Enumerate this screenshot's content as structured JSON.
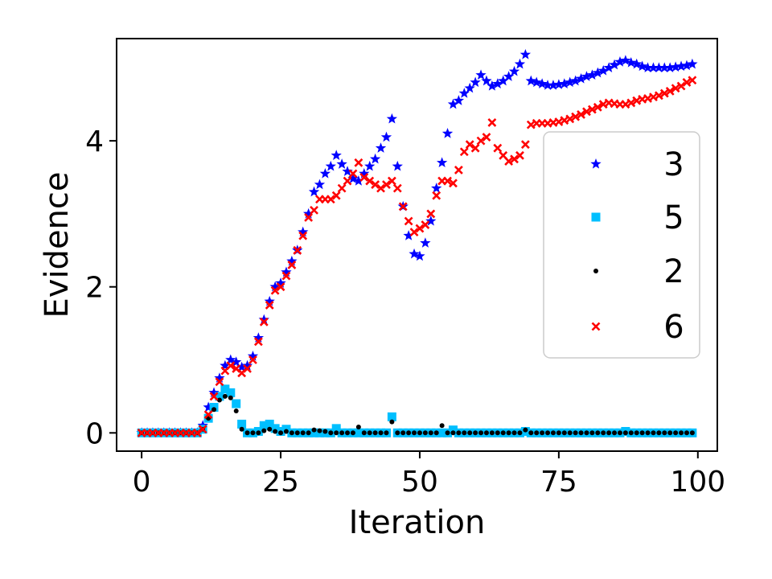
{
  "chart_data": {
    "type": "scatter",
    "title": "",
    "xlabel": "Iteration",
    "ylabel": "Evidence",
    "xlim": [
      -4.5,
      103.5
    ],
    "ylim": [
      -0.25,
      5.4
    ],
    "xticks": [
      0,
      25,
      50,
      75,
      100
    ],
    "yticks": [
      0,
      2,
      4
    ],
    "grid": false,
    "legend_position": "right",
    "series": [
      {
        "name": "3",
        "color": "#0000ff",
        "marker": "star",
        "x": [
          0,
          1,
          2,
          3,
          4,
          5,
          6,
          7,
          8,
          9,
          10,
          11,
          12,
          13,
          14,
          15,
          16,
          17,
          18,
          19,
          20,
          21,
          22,
          23,
          24,
          25,
          26,
          27,
          28,
          29,
          30,
          31,
          32,
          33,
          34,
          35,
          36,
          37,
          38,
          39,
          40,
          41,
          42,
          43,
          44,
          45,
          46,
          47,
          48,
          49,
          50,
          51,
          52,
          53,
          54,
          55,
          56,
          57,
          58,
          59,
          60,
          61,
          62,
          63,
          64,
          65,
          66,
          67,
          68,
          69,
          70,
          71,
          72,
          73,
          74,
          75,
          76,
          77,
          78,
          79,
          80,
          81,
          82,
          83,
          84,
          85,
          86,
          87,
          88,
          89,
          90,
          91,
          92,
          93,
          94,
          95,
          96,
          97,
          98,
          99
        ],
        "y": [
          0,
          0,
          0,
          0,
          0,
          0,
          0,
          0,
          0,
          0,
          0,
          0.1,
          0.35,
          0.55,
          0.75,
          0.92,
          1.0,
          0.97,
          0.9,
          0.92,
          1.05,
          1.3,
          1.55,
          1.8,
          2.0,
          2.05,
          2.2,
          2.35,
          2.5,
          2.75,
          3.0,
          3.3,
          3.4,
          3.55,
          3.65,
          3.8,
          3.68,
          3.58,
          3.48,
          3.45,
          3.55,
          3.65,
          3.75,
          3.9,
          4.05,
          4.3,
          3.65,
          3.1,
          2.7,
          2.45,
          2.42,
          2.6,
          2.9,
          3.35,
          3.7,
          4.1,
          4.5,
          4.55,
          4.65,
          4.72,
          4.8,
          4.9,
          4.82,
          4.75,
          4.78,
          4.82,
          4.88,
          4.95,
          5.05,
          5.18,
          4.82,
          4.8,
          4.78,
          4.76,
          4.76,
          4.77,
          4.78,
          4.8,
          4.82,
          4.85,
          4.88,
          4.9,
          4.93,
          4.96,
          5.0,
          5.04,
          5.08,
          5.1,
          5.07,
          5.05,
          5.02,
          5.0,
          5.0,
          5.0,
          5.0,
          5.0,
          5.01,
          5.02,
          5.03,
          5.05
        ]
      },
      {
        "name": "5",
        "color": "#00bfff",
        "marker": "square",
        "x": [
          0,
          1,
          2,
          3,
          4,
          5,
          6,
          7,
          8,
          9,
          10,
          11,
          12,
          13,
          14,
          15,
          16,
          17,
          18,
          19,
          20,
          21,
          22,
          23,
          24,
          25,
          26,
          27,
          28,
          29,
          30,
          31,
          32,
          33,
          34,
          35,
          36,
          37,
          38,
          39,
          40,
          41,
          42,
          43,
          44,
          45,
          46,
          47,
          48,
          49,
          50,
          51,
          52,
          53,
          54,
          55,
          56,
          57,
          58,
          59,
          60,
          61,
          62,
          63,
          64,
          65,
          66,
          67,
          68,
          69,
          70,
          71,
          72,
          73,
          74,
          75,
          76,
          77,
          78,
          79,
          80,
          81,
          82,
          83,
          84,
          85,
          86,
          87,
          88,
          89,
          90,
          91,
          92,
          93,
          94,
          95,
          96,
          97,
          98,
          99
        ],
        "y": [
          0,
          0,
          0,
          0,
          0,
          0,
          0,
          0,
          0,
          0,
          0,
          0.05,
          0.2,
          0.35,
          0.5,
          0.6,
          0.55,
          0.4,
          0.12,
          0,
          0,
          0.02,
          0.1,
          0.12,
          0.06,
          0.02,
          0.05,
          0,
          0,
          0,
          0,
          0,
          0,
          0,
          0,
          0.06,
          0,
          0,
          0,
          0,
          0,
          0,
          0,
          0,
          0,
          0.22,
          0,
          0,
          0,
          0,
          0,
          0,
          0,
          0,
          0,
          0,
          0.04,
          0,
          0,
          0,
          0,
          0,
          0,
          0,
          0,
          0,
          0,
          0,
          0,
          0.02,
          0,
          0,
          0,
          0,
          0,
          0,
          0,
          0,
          0,
          0,
          0,
          0,
          0,
          0,
          0,
          0,
          0,
          0.02,
          0,
          0,
          0,
          0,
          0,
          0,
          0,
          0,
          0,
          0,
          0,
          0
        ]
      },
      {
        "name": "2",
        "color": "#000000",
        "marker": "dot",
        "x": [
          0,
          1,
          2,
          3,
          4,
          5,
          6,
          7,
          8,
          9,
          10,
          11,
          12,
          13,
          14,
          15,
          16,
          17,
          18,
          19,
          20,
          21,
          22,
          23,
          24,
          25,
          26,
          27,
          28,
          29,
          30,
          31,
          32,
          33,
          34,
          35,
          36,
          37,
          38,
          39,
          40,
          41,
          42,
          43,
          44,
          45,
          46,
          47,
          48,
          49,
          50,
          51,
          52,
          53,
          54,
          55,
          56,
          57,
          58,
          59,
          60,
          61,
          62,
          63,
          64,
          65,
          66,
          67,
          68,
          69,
          70,
          71,
          72,
          73,
          74,
          75,
          76,
          77,
          78,
          79,
          80,
          81,
          82,
          83,
          84,
          85,
          86,
          87,
          88,
          89,
          90,
          91,
          92,
          93,
          94,
          95,
          96,
          97,
          98,
          99
        ],
        "y": [
          0,
          0,
          0,
          0,
          0,
          0,
          0,
          0,
          0,
          0,
          0,
          0.05,
          0.2,
          0.32,
          0.45,
          0.5,
          0.48,
          0.3,
          0.05,
          0,
          0,
          0,
          0.03,
          0.05,
          0.02,
          0,
          0.02,
          0,
          0,
          0,
          0,
          0.04,
          0.03,
          0.02,
          0,
          0,
          0,
          0,
          0,
          0.08,
          0,
          0,
          0,
          0,
          0,
          0.15,
          0,
          0,
          0,
          0,
          0,
          0,
          0,
          0,
          0.1,
          0,
          0,
          0,
          0,
          0,
          0,
          0,
          0,
          0,
          0,
          0,
          0,
          0,
          0,
          0.04,
          0,
          0,
          0,
          0,
          0,
          0,
          0,
          0,
          0,
          0,
          0,
          0,
          0,
          0,
          0,
          0,
          0,
          0,
          0,
          0,
          0,
          0,
          0,
          0,
          0,
          0,
          0,
          0,
          0,
          0
        ]
      },
      {
        "name": "6",
        "color": "#ff0000",
        "marker": "x",
        "x": [
          0,
          1,
          2,
          3,
          4,
          5,
          6,
          7,
          8,
          9,
          10,
          11,
          12,
          13,
          14,
          15,
          16,
          17,
          18,
          19,
          20,
          21,
          22,
          23,
          24,
          25,
          26,
          27,
          28,
          29,
          30,
          31,
          32,
          33,
          34,
          35,
          36,
          37,
          38,
          39,
          40,
          41,
          42,
          43,
          44,
          45,
          46,
          47,
          48,
          49,
          50,
          51,
          52,
          53,
          54,
          55,
          56,
          57,
          58,
          59,
          60,
          61,
          62,
          63,
          64,
          65,
          66,
          67,
          68,
          69,
          70,
          71,
          72,
          73,
          74,
          75,
          76,
          77,
          78,
          79,
          80,
          81,
          82,
          83,
          84,
          85,
          86,
          87,
          88,
          89,
          90,
          91,
          92,
          93,
          94,
          95,
          96,
          97,
          98,
          99
        ],
        "y": [
          0,
          0,
          0,
          0,
          0,
          0,
          0,
          0,
          0,
          0,
          0,
          0.05,
          0.25,
          0.5,
          0.7,
          0.85,
          0.92,
          0.88,
          0.82,
          0.88,
          1.0,
          1.25,
          1.52,
          1.75,
          1.95,
          2.0,
          2.15,
          2.3,
          2.5,
          2.7,
          2.95,
          3.05,
          3.2,
          3.2,
          3.2,
          3.25,
          3.35,
          3.45,
          3.55,
          3.7,
          3.5,
          3.45,
          3.4,
          3.35,
          3.4,
          3.45,
          3.35,
          3.1,
          2.9,
          2.75,
          2.8,
          2.85,
          3.0,
          3.25,
          3.45,
          3.45,
          3.42,
          3.6,
          3.85,
          3.95,
          3.9,
          4.0,
          4.05,
          4.25,
          3.9,
          3.8,
          3.72,
          3.75,
          3.8,
          3.95,
          4.22,
          4.24,
          4.24,
          4.24,
          4.25,
          4.26,
          4.28,
          4.3,
          4.33,
          4.36,
          4.4,
          4.43,
          4.46,
          4.5,
          4.52,
          4.51,
          4.5,
          4.5,
          4.52,
          4.55,
          4.57,
          4.58,
          4.6,
          4.62,
          4.65,
          4.68,
          4.72,
          4.75,
          4.8,
          4.83
        ]
      }
    ]
  }
}
